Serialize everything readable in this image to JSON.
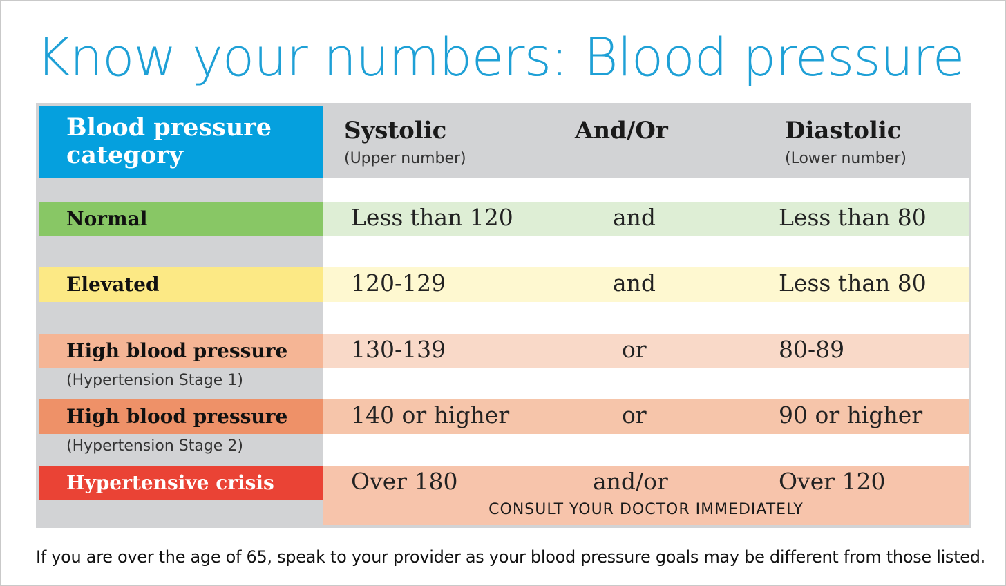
{
  "title": "Know your numbers: Blood pressure",
  "header": {
    "category": "Blood pressure category",
    "systolic": "Systolic",
    "systolic_sub": "(Upper number)",
    "andor": "And/Or",
    "diastolic": "Diastolic",
    "diastolic_sub": "(Lower number)"
  },
  "rows": [
    {
      "category": "Normal",
      "sub": "",
      "systolic": "Less than 120",
      "andor": "and",
      "diastolic": "Less than 80",
      "label_color": "#88c765",
      "band_color": "#deeed5"
    },
    {
      "category": "Elevated",
      "sub": "",
      "systolic": "120-129",
      "andor": "and",
      "diastolic": "Less than 80",
      "label_color": "#fce985",
      "band_color": "#fef8d0"
    },
    {
      "category": "High blood pressure",
      "sub": "(Hypertension Stage 1)",
      "systolic": "130-139",
      "andor": "or",
      "diastolic": "80-89",
      "label_color": "#f5b595",
      "band_color": "#f9d9c8"
    },
    {
      "category": "High blood pressure",
      "sub": "(Hypertension Stage 2)",
      "systolic": "140 or higher",
      "andor": "or",
      "diastolic": "90 or higher",
      "label_color": "#ee9168",
      "band_color": "#f6c5aa"
    },
    {
      "category": "Hypertensive crisis",
      "sub": "",
      "systolic": "Over 180",
      "andor": "and/or",
      "diastolic": "Over 120",
      "label_color": "#ea4335",
      "band_color": "#f7c4ab"
    }
  ],
  "consult": "CONSULT YOUR DOCTOR IMMEDIATELY",
  "footnote": "If you are over the age of 65, speak to your provider as your blood pressure goals may be different from those listed."
}
